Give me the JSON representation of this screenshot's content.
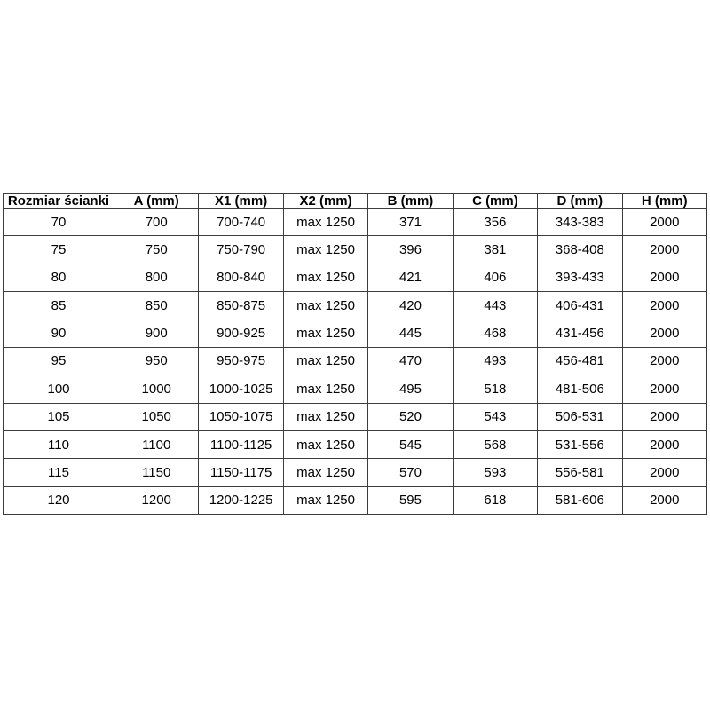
{
  "page": {
    "background": "#ffffff"
  },
  "table_style": {
    "border_color": "#3c3c3c",
    "text_color": "#000000",
    "header_bold": true
  },
  "chart_data": {
    "type": "table",
    "title": "",
    "columns": [
      "Rozmiar ścianki",
      "A (mm)",
      "X1 (mm)",
      "X2 (mm)",
      "B (mm)",
      "C (mm)",
      "D (mm)",
      "H (mm)"
    ],
    "rows": [
      [
        "70",
        "700",
        "700-740",
        "max 1250",
        "371",
        "356",
        "343-383",
        "2000"
      ],
      [
        "75",
        "750",
        "750-790",
        "max 1250",
        "396",
        "381",
        "368-408",
        "2000"
      ],
      [
        "80",
        "800",
        "800-840",
        "max 1250",
        "421",
        "406",
        "393-433",
        "2000"
      ],
      [
        "85",
        "850",
        "850-875",
        "max 1250",
        "420",
        "443",
        "406-431",
        "2000"
      ],
      [
        "90",
        "900",
        "900-925",
        "max 1250",
        "445",
        "468",
        "431-456",
        "2000"
      ],
      [
        "95",
        "950",
        "950-975",
        "max 1250",
        "470",
        "493",
        "456-481",
        "2000"
      ],
      [
        "100",
        "1000",
        "1000-1025",
        "max 1250",
        "495",
        "518",
        "481-506",
        "2000"
      ],
      [
        "105",
        "1050",
        "1050-1075",
        "max 1250",
        "520",
        "543",
        "506-531",
        "2000"
      ],
      [
        "110",
        "1100",
        "1100-1125",
        "max 1250",
        "545",
        "568",
        "531-556",
        "2000"
      ],
      [
        "115",
        "1150",
        "1150-1175",
        "max 1250",
        "570",
        "593",
        "556-581",
        "2000"
      ],
      [
        "120",
        "1200",
        "1200-1225",
        "max 1250",
        "595",
        "618",
        "581-606",
        "2000"
      ]
    ]
  }
}
